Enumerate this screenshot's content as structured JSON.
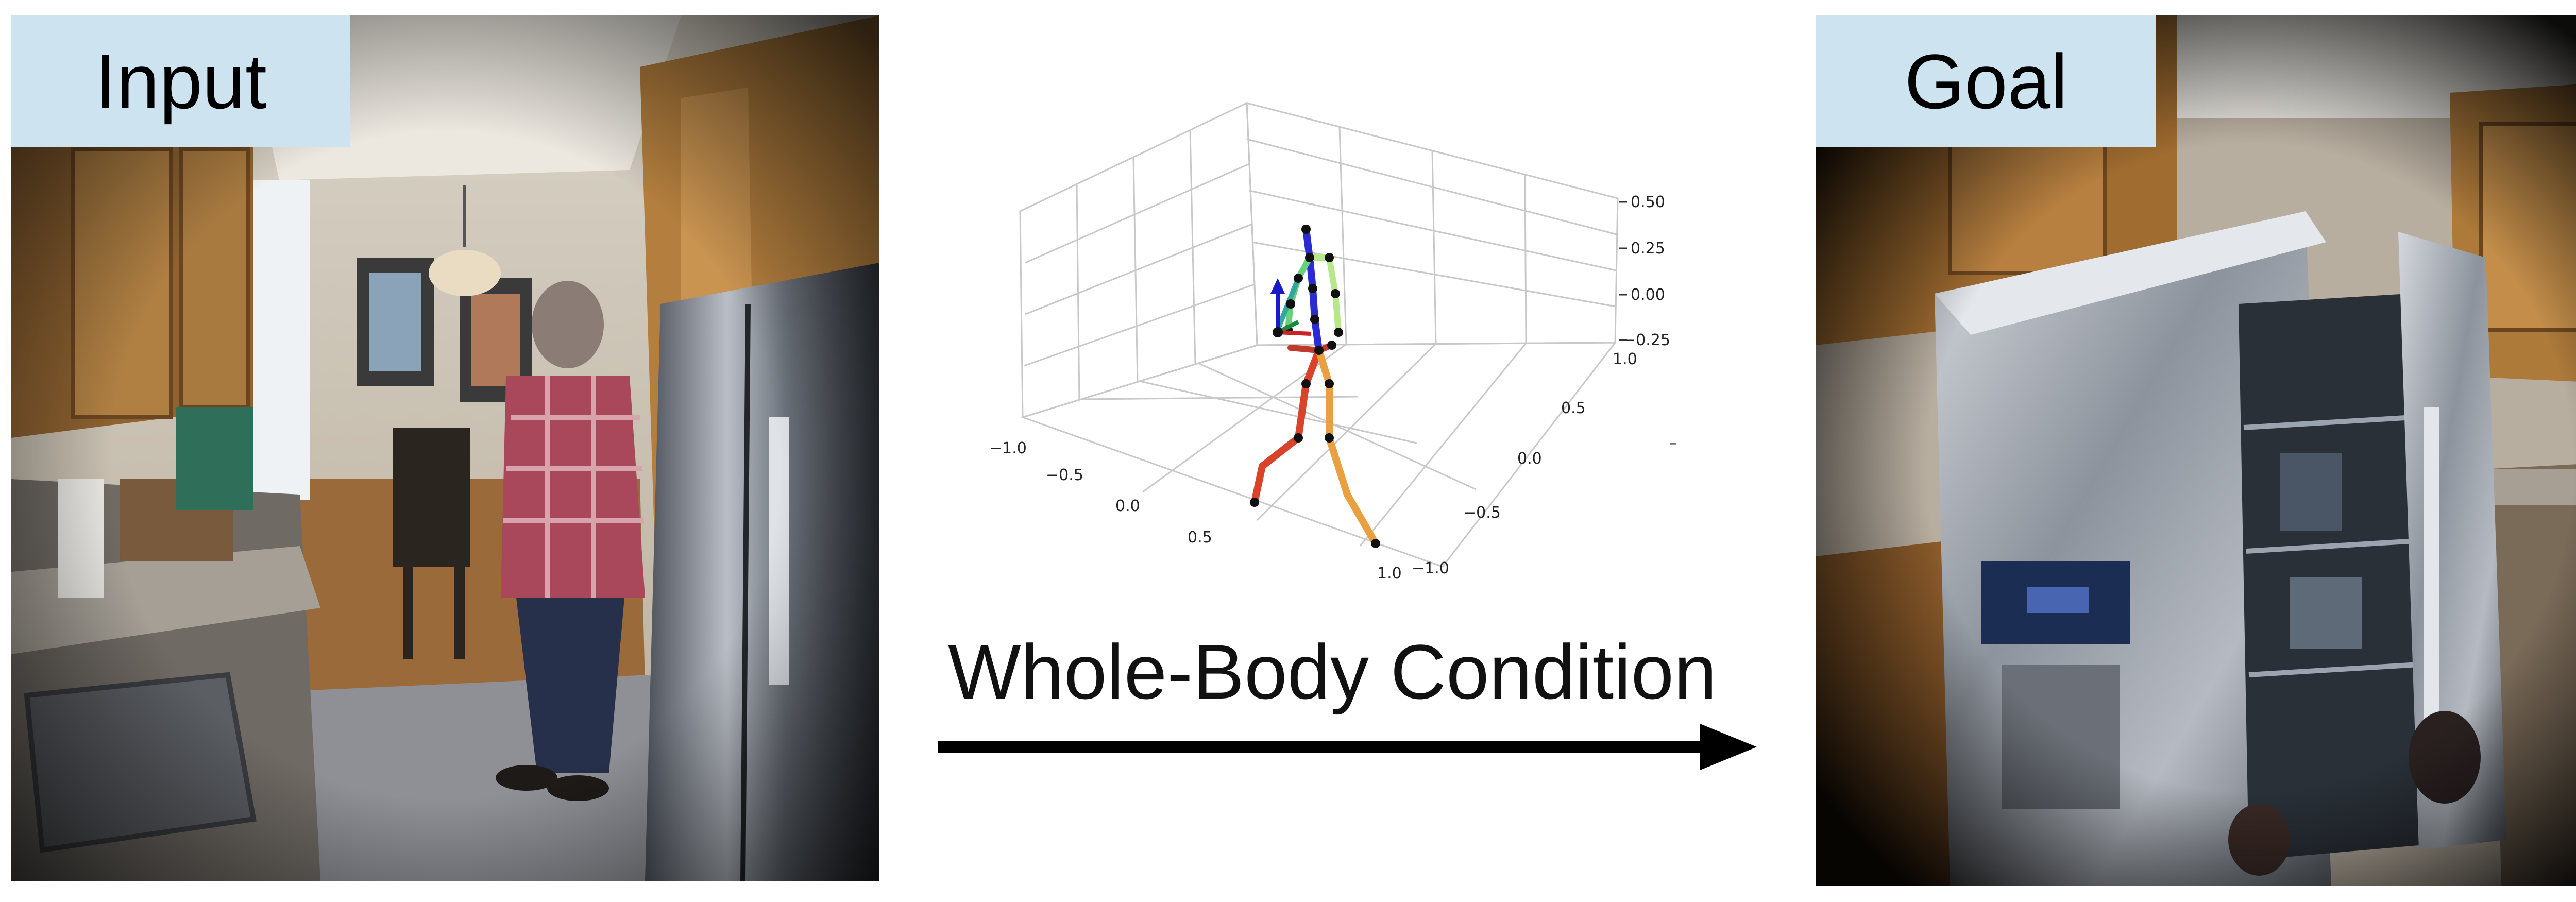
{
  "input_panel": {
    "label": "Input"
  },
  "goal_panel": {
    "label": "Goal"
  },
  "center": {
    "caption": "Whole-Body Condition",
    "plot": {
      "ticks_front": [
        "−1.0",
        "−0.5",
        "0.0",
        "0.5",
        "1.0"
      ],
      "ticks_side": [
        "−1.0",
        "−0.5",
        "0.0",
        "0.5",
        "1.0"
      ],
      "ticks_z": [
        "0.50",
        "0.25",
        "0.00",
        "−0.25"
      ],
      "side_dash": "–"
    }
  },
  "colors": {
    "label_bg": "#cde4f0",
    "arrow": "#000000",
    "skeleton_spine": "#2b2bd6",
    "skeleton_left_arm": "#6ad07a",
    "skeleton_right_arm": "#b6e88a",
    "skeleton_left_leg": "#d9432a",
    "skeleton_right_leg": "#e8a040",
    "axis_arrow": "#1a1acc"
  }
}
